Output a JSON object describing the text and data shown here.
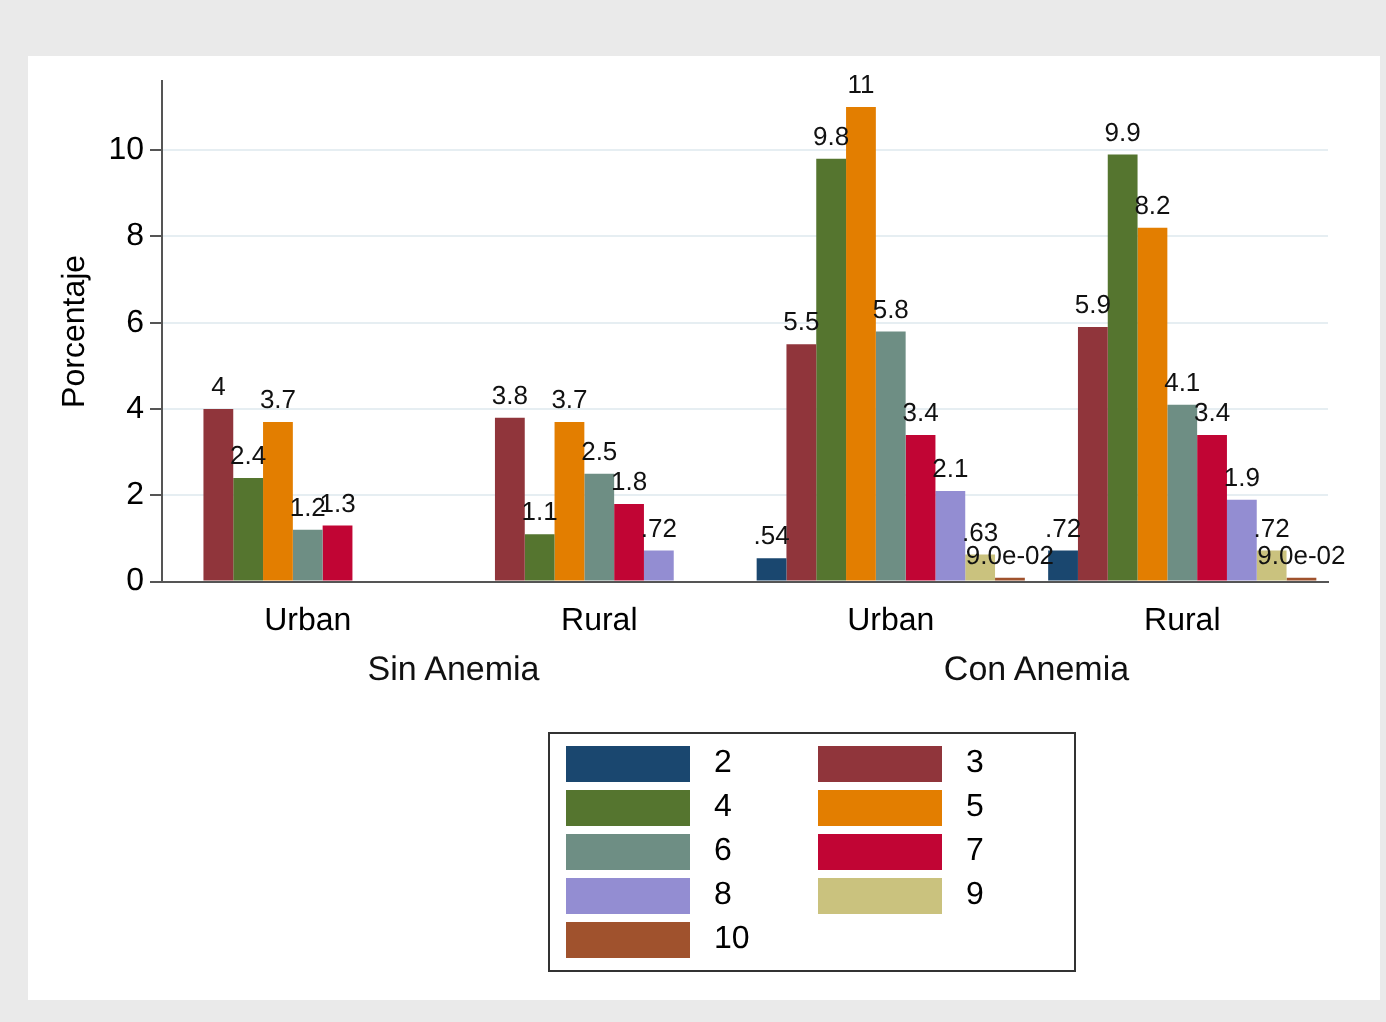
{
  "chart_data": {
    "type": "bar",
    "ylabel": "Porcentaje",
    "categories": [
      "Urban",
      "Rural",
      "Urban",
      "Rural"
    ],
    "annotations": [
      "Sin Anemia",
      "Con Anemia"
    ],
    "ylim": [
      0,
      11.6
    ],
    "yticks": [
      0,
      2,
      4,
      6,
      8,
      10
    ],
    "grid": "y",
    "legend": "bottom",
    "series": [
      {
        "name": "2",
        "color": "#1a476f",
        "values": [
          null,
          null,
          0.54,
          0.72
        ],
        "value_labels": [
          null,
          null,
          ".54",
          ".72"
        ]
      },
      {
        "name": "3",
        "color": "#90353b",
        "values": [
          4,
          3.8,
          5.5,
          5.9
        ],
        "value_labels": [
          "4",
          "3.8",
          "5.5",
          "5.9"
        ]
      },
      {
        "name": "4",
        "color": "#55752f",
        "values": [
          2.4,
          1.1,
          9.8,
          9.9
        ],
        "value_labels": [
          "2.4",
          "1.1",
          "9.8",
          "9.9"
        ]
      },
      {
        "name": "5",
        "color": "#e37e00",
        "values": [
          3.7,
          3.7,
          11,
          8.2
        ],
        "value_labels": [
          "3.7",
          "3.7",
          "11",
          "8.2"
        ]
      },
      {
        "name": "6",
        "color": "#6e8e84",
        "values": [
          1.2,
          2.5,
          5.8,
          4.1
        ],
        "value_labels": [
          "1.2",
          "2.5",
          "5.8",
          "4.1"
        ]
      },
      {
        "name": "7",
        "color": "#c10534",
        "values": [
          1.3,
          1.8,
          3.4,
          3.4
        ],
        "value_labels": [
          "1.3",
          "1.8",
          "3.4",
          "3.4"
        ]
      },
      {
        "name": "8",
        "color": "#938dd2",
        "values": [
          null,
          0.72,
          2.1,
          1.9
        ],
        "value_labels": [
          null,
          ".72",
          "2.1",
          "1.9"
        ]
      },
      {
        "name": "9",
        "color": "#cac27e",
        "values": [
          null,
          null,
          0.63,
          0.72
        ],
        "value_labels": [
          null,
          null,
          ".63",
          ".72"
        ]
      },
      {
        "name": "10",
        "color": "#a0522d",
        "values": [
          null,
          null,
          0.09,
          0.09
        ],
        "value_labels": [
          null,
          null,
          "9.0e-02",
          "9.0e-02"
        ]
      }
    ]
  }
}
